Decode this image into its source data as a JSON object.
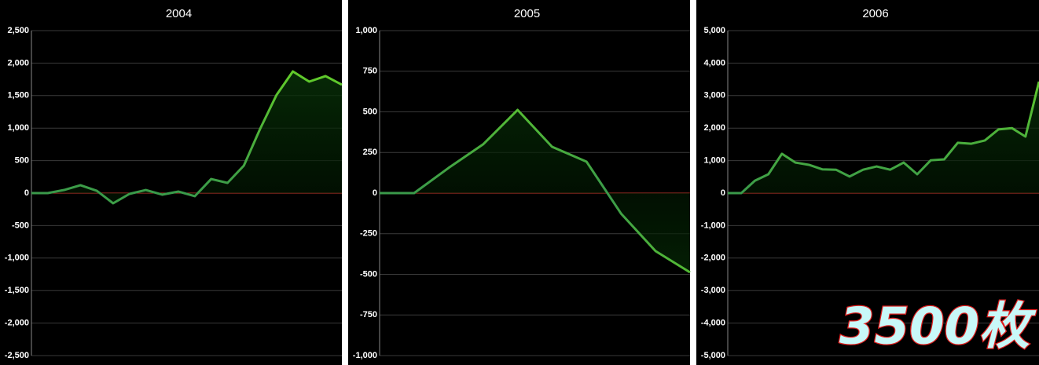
{
  "chart_data": [
    {
      "type": "line",
      "title": "2004",
      "categories": [
        null,
        null,
        null,
        null,
        null,
        null,
        null,
        null,
        null,
        null,
        null,
        null,
        null,
        null,
        null,
        null,
        null,
        null,
        null,
        null
      ],
      "series": [
        {
          "color": "#6fdc1f",
          "color_low": "#3a9a4a",
          "values": [
            0,
            0,
            48,
            121,
            36,
            -157,
            -12,
            48,
            -24,
            24,
            -48,
            217,
            157,
            423,
            990,
            1510,
            1872,
            1715,
            1800,
            1667
          ]
        }
      ],
      "ylim": [
        -2500,
        2500
      ],
      "yticks": [
        {
          "value": -2500,
          "label": "-2,500"
        },
        {
          "value": -2000,
          "label": "-2,000"
        },
        {
          "value": -1500,
          "label": "-1,500"
        },
        {
          "value": -1000,
          "label": "-1,000"
        },
        -500,
        0,
        500,
        {
          "value": 1000,
          "label": "1,000"
        },
        {
          "value": 1500,
          "label": "1,500"
        },
        {
          "value": 2000,
          "label": "2,000"
        },
        {
          "value": 2500,
          "label": "2,500"
        }
      ],
      "grid": true
    },
    {
      "type": "line",
      "title": "2005",
      "categories": [
        null,
        null,
        null,
        null,
        null,
        null,
        null,
        null,
        null,
        null
      ],
      "series": [
        {
          "color": "#6fdc1f",
          "color_low": "#3a9a4a",
          "values": [
            0,
            0,
            155,
            300,
            512,
            285,
            193,
            -126,
            -357,
            -488
          ]
        }
      ],
      "ylim": [
        -1000,
        1000
      ],
      "yticks": [
        {
          "value": -1000,
          "label": "-1,000"
        },
        -750,
        -500,
        -250,
        0,
        250,
        500,
        750,
        {
          "value": 1000,
          "label": "1,000"
        }
      ],
      "grid": true
    },
    {
      "type": "line",
      "title": "2006",
      "categories": [
        null,
        null,
        null,
        null,
        null,
        null,
        null,
        null,
        null,
        null,
        null,
        null,
        null,
        null,
        null,
        null,
        null,
        null,
        null,
        null,
        null,
        null,
        null,
        null
      ],
      "series": [
        {
          "color": "#6fdc1f",
          "color_low": "#3a9a4a",
          "values": [
            0,
            0,
            380,
            580,
            1210,
            940,
            870,
            730,
            720,
            510,
            720,
            820,
            720,
            940,
            580,
            1010,
            1040,
            1550,
            1520,
            1620,
            1960,
            2000,
            1740,
            3430
          ]
        }
      ],
      "ylim": [
        -5000,
        5000
      ],
      "yticks": [
        {
          "value": -5000,
          "label": "-5,000"
        },
        {
          "value": -4000,
          "label": "-4,000"
        },
        {
          "value": -3000,
          "label": "-3,000"
        },
        {
          "value": -2000,
          "label": "-2,000"
        },
        {
          "value": -1000,
          "label": "-1,000"
        },
        0,
        {
          "value": 1000,
          "label": "1,000"
        },
        {
          "value": 2000,
          "label": "2,000"
        },
        {
          "value": 3000,
          "label": "3,000"
        },
        {
          "value": 4000,
          "label": "4,000"
        },
        {
          "value": 5000,
          "label": "5,000"
        }
      ],
      "grid": true,
      "annotation": "3500枚"
    }
  ]
}
